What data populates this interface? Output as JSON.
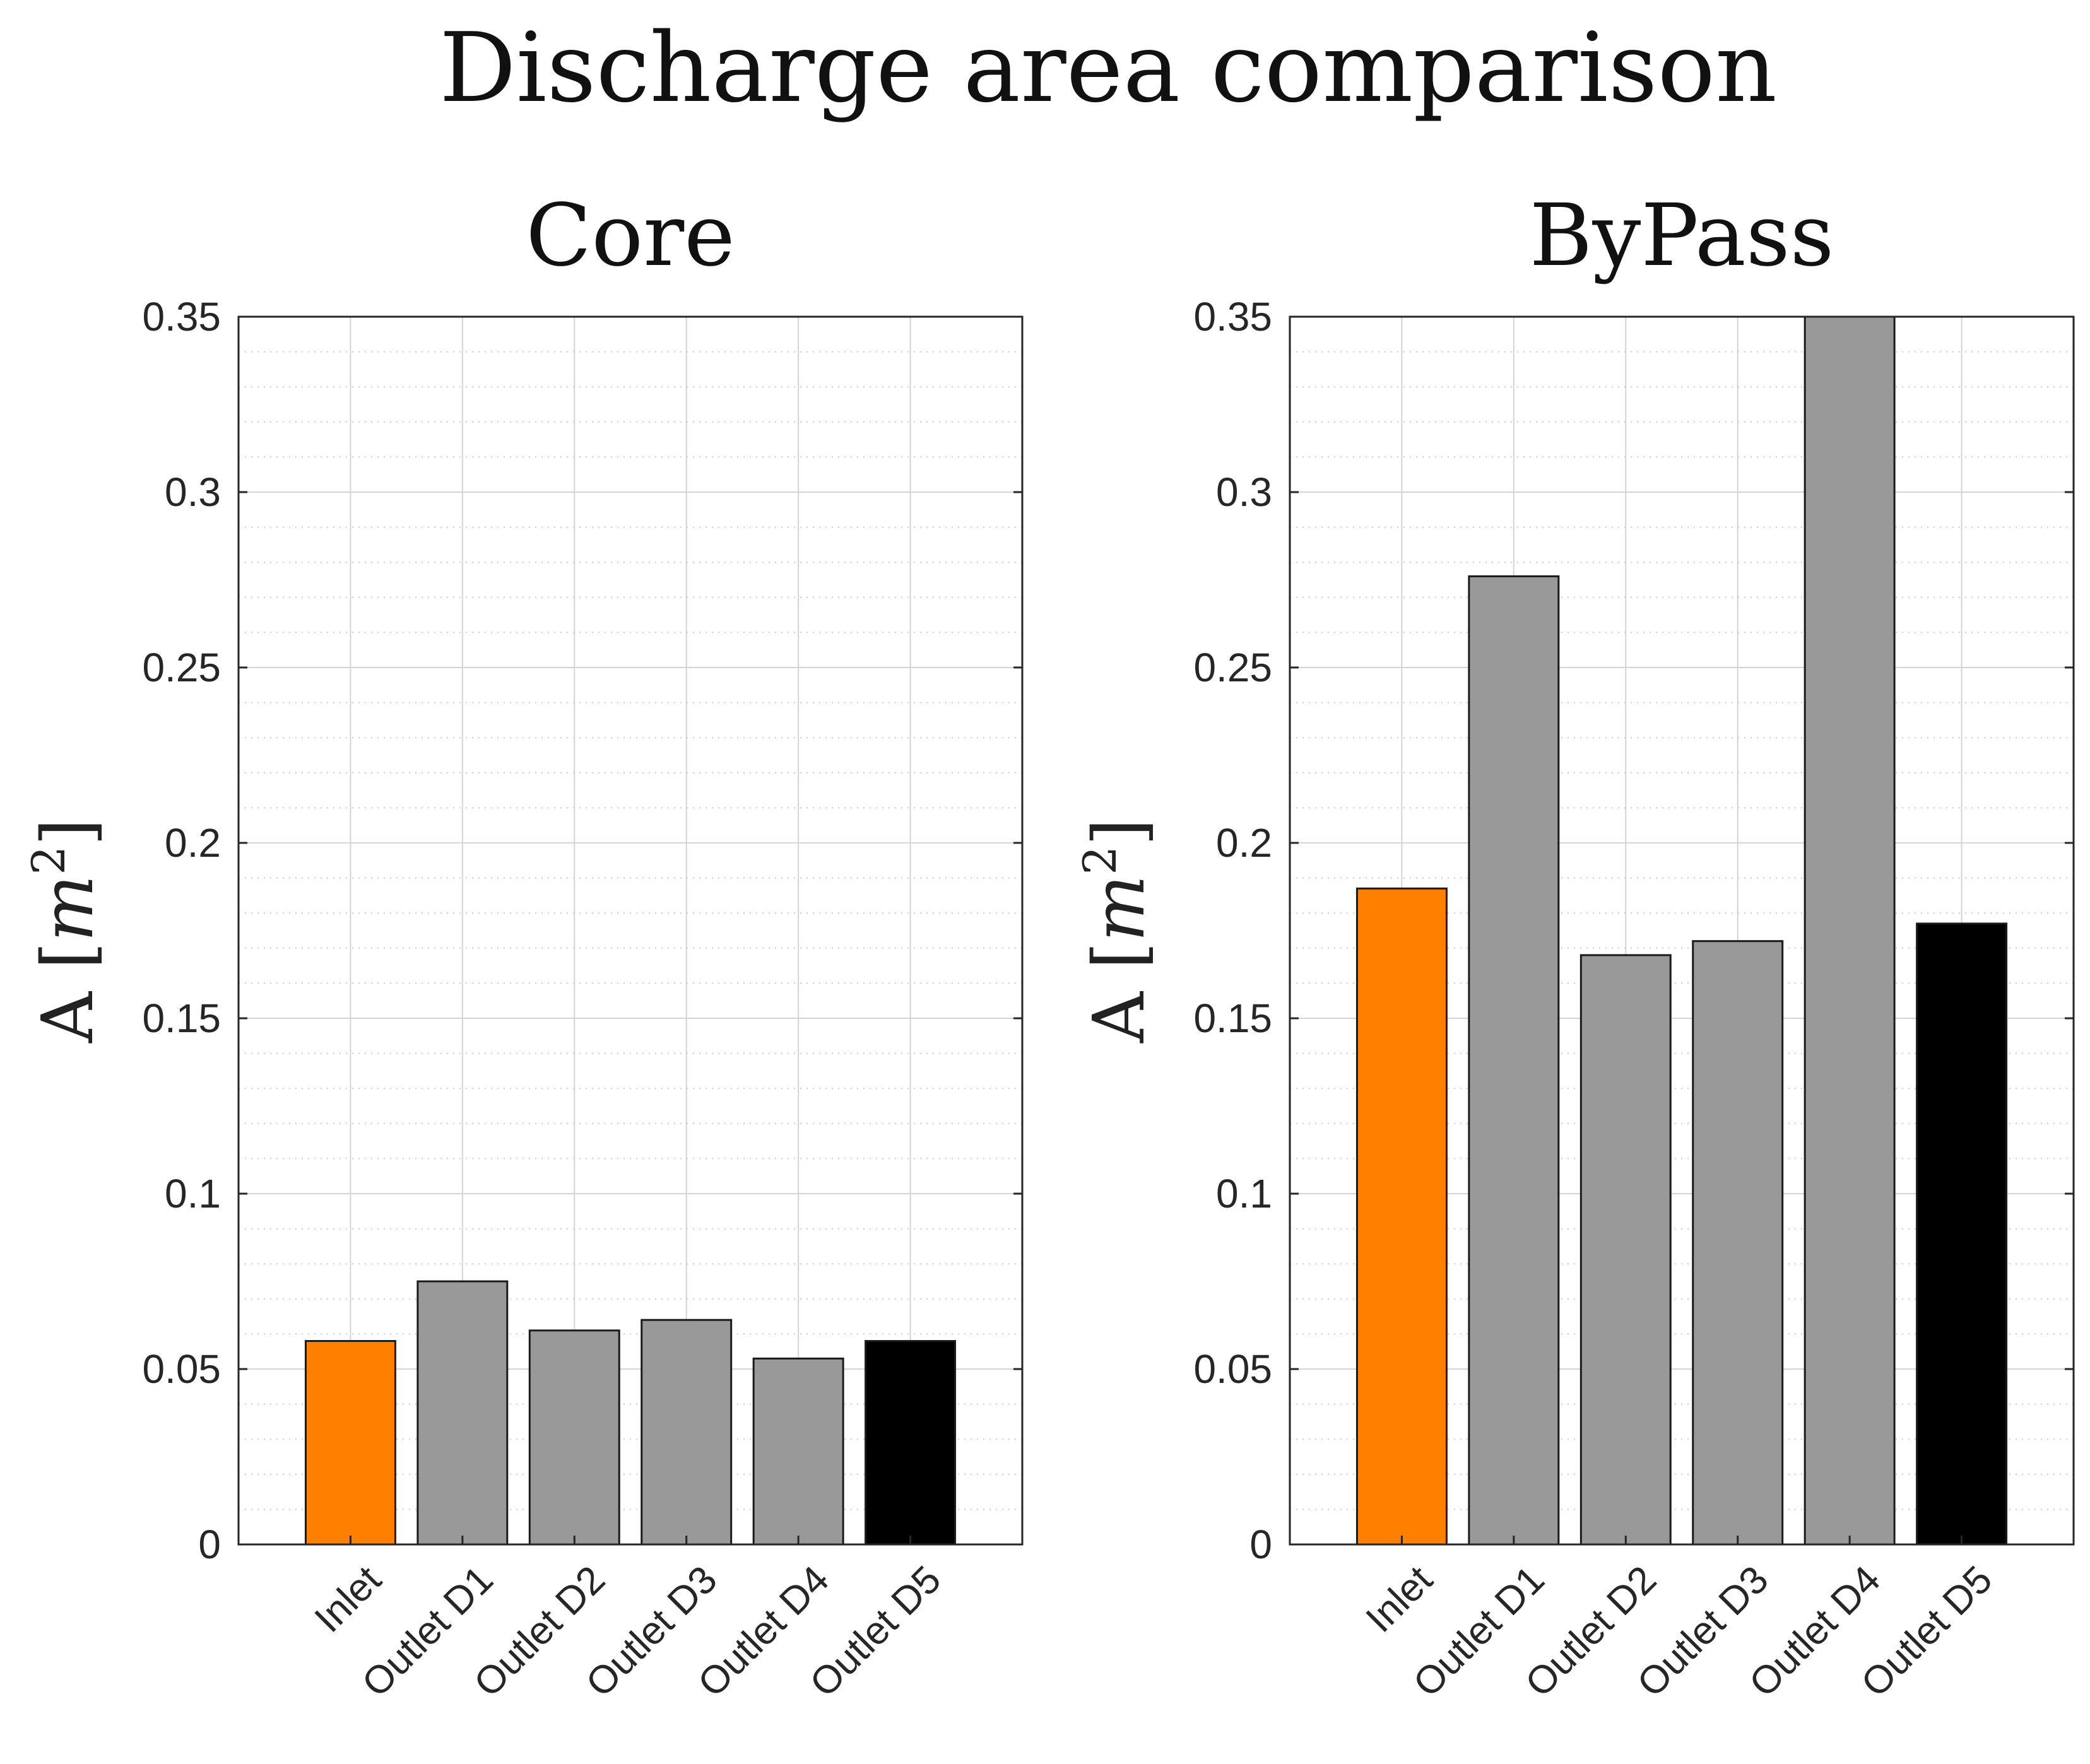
{
  "figure_title": "Discharge area comparison",
  "colors": {
    "inlet": "#ff8000",
    "outlet": "#999999",
    "last_outlet": "#000000",
    "axis": "#262626"
  },
  "chart_data": [
    {
      "type": "bar",
      "title": "Core",
      "xlabel": "",
      "ylabel": "A [m^2]",
      "ylabel_parts": {
        "name": "A ",
        "open": "[",
        "unit": "m",
        "exp": "2",
        "close": "]"
      },
      "ylim": [
        0,
        0.35
      ],
      "yticks": [
        0,
        0.05,
        0.1,
        0.15,
        0.2,
        0.25,
        0.3,
        0.35
      ],
      "ytick_labels": [
        "0",
        "0.05",
        "0.1",
        "0.15",
        "0.2",
        "0.25",
        "0.3",
        "0.35"
      ],
      "grid": true,
      "minor_grid": true,
      "categories": [
        "Inlet",
        "Outlet D1",
        "Outlet D2",
        "Outlet D3",
        "Outlet D4",
        "Outlet D5"
      ],
      "values": [
        0.058,
        0.075,
        0.061,
        0.064,
        0.053,
        0.058
      ],
      "bar_colors": [
        "inlet",
        "outlet",
        "outlet",
        "outlet",
        "outlet",
        "last_outlet"
      ]
    },
    {
      "type": "bar",
      "title": "ByPass",
      "xlabel": "",
      "ylabel": "A [m^2]",
      "ylabel_parts": {
        "name": "A ",
        "open": "[",
        "unit": "m",
        "exp": "2",
        "close": "]"
      },
      "ylim": [
        0,
        0.35
      ],
      "yticks": [
        0,
        0.05,
        0.1,
        0.15,
        0.2,
        0.25,
        0.3,
        0.35
      ],
      "ytick_labels": [
        "0",
        "0.05",
        "0.1",
        "0.15",
        "0.2",
        "0.25",
        "0.3",
        "0.35"
      ],
      "grid": true,
      "minor_grid": true,
      "categories": [
        "Inlet",
        "Outlet D1",
        "Outlet D2",
        "Outlet D3",
        "Outlet D4",
        "Outlet D5"
      ],
      "values": [
        0.187,
        0.276,
        0.168,
        0.172,
        0.35,
        0.177
      ],
      "bar_colors": [
        "inlet",
        "outlet",
        "outlet",
        "outlet",
        "outlet",
        "last_outlet"
      ]
    }
  ]
}
